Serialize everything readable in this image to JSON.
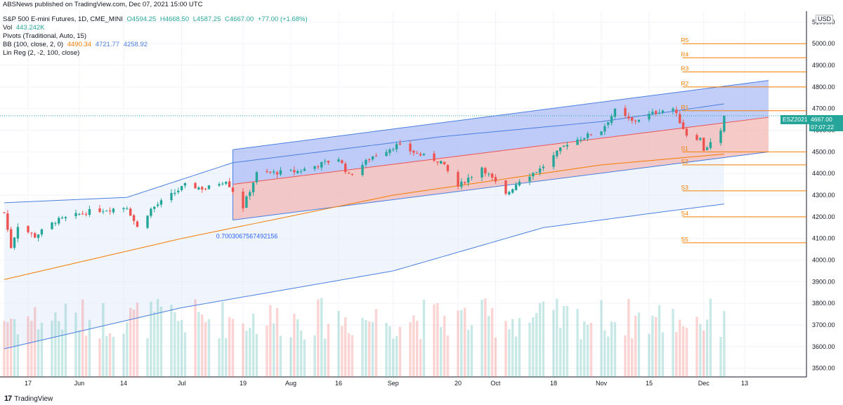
{
  "header": {
    "publisher": "ABSNews published on TradingView.com, Dec 07, 2021 15:00 UTC",
    "symbol_line": "S&P 500 E-mini Futures, 1D, CME_MINI",
    "ohlc": {
      "open": "O4594.25",
      "high": "H4668.50",
      "low": "L4587.25",
      "close": "C4667.00",
      "change": "+77.00 (+1.68%)"
    },
    "vol_label": "Vol",
    "vol_value": "443.242K",
    "pivots_label": "Pivots (Traditional, Auto, 15)",
    "bb_label": "BB (100, close, 2, 0)",
    "bb_mid": "4490.34",
    "bb_upper": "4721.77",
    "bb_lower": "4258.92",
    "linreg_label": "Lin Reg (2, -2, 100, close)"
  },
  "price_axis": {
    "currency": "USD",
    "current_symbol": "ESZ2021",
    "current_price": "4667.00",
    "countdown": "07:07:22"
  },
  "annotation": "0.7003067567492156",
  "footer": {
    "logo_text": "TradingView",
    "logo_mark": "17"
  },
  "colors": {
    "up": "#26a69a",
    "down": "#ef5350",
    "bb_band": "#4a7fe0",
    "bb_basis": "#f57c00",
    "pivot": "#f57c00",
    "linreg_upper_fill": "#a8b9f5",
    "linreg_lower_fill": "#f2b8b4"
  },
  "chart_data": {
    "type": "candlestick",
    "title": "S&P 500 E-mini Futures, 1D, CME_MINI",
    "y_range": [
      3460,
      5150
    ],
    "y_ticks": [
      3500,
      3600,
      3700,
      3800,
      3900,
      4000,
      4100,
      4200,
      4300,
      4400,
      4500,
      4600,
      4700,
      4800,
      4900,
      5000,
      5100
    ],
    "x_labels": [
      {
        "label": "17",
        "date": "2021-05-17"
      },
      {
        "label": "Jun",
        "date": "2021-06-01"
      },
      {
        "label": "14",
        "date": "2021-06-14"
      },
      {
        "label": "Jul",
        "date": "2021-07-01"
      },
      {
        "label": "19",
        "date": "2021-07-19"
      },
      {
        "label": "Aug",
        "date": "2021-08-02"
      },
      {
        "label": "16",
        "date": "2021-08-16"
      },
      {
        "label": "Sep",
        "date": "2021-09-01"
      },
      {
        "label": "20",
        "date": "2021-09-20"
      },
      {
        "label": "Oct",
        "date": "2021-10-01"
      },
      {
        "label": "18",
        "date": "2021-10-18"
      },
      {
        "label": "Nov",
        "date": "2021-11-01"
      },
      {
        "label": "15",
        "date": "2021-11-15"
      },
      {
        "label": "Dec",
        "date": "2021-12-01"
      },
      {
        "label": "13",
        "date": "2021-12-13"
      }
    ],
    "date_range": [
      "2021-05-10",
      "2021-12-20"
    ],
    "close_keypoints": [
      {
        "date": "2021-05-10",
        "close": 4220
      },
      {
        "date": "2021-05-12",
        "close": 4060
      },
      {
        "date": "2021-05-14",
        "close": 4160
      },
      {
        "date": "2021-05-19",
        "close": 4110
      },
      {
        "date": "2021-05-25",
        "close": 4180
      },
      {
        "date": "2021-06-04",
        "close": 4225
      },
      {
        "date": "2021-06-15",
        "close": 4245
      },
      {
        "date": "2021-06-18",
        "close": 4150
      },
      {
        "date": "2021-06-22",
        "close": 4235
      },
      {
        "date": "2021-07-02",
        "close": 4345
      },
      {
        "date": "2021-07-08",
        "close": 4330
      },
      {
        "date": "2021-07-14",
        "close": 4370
      },
      {
        "date": "2021-07-19",
        "close": 4245
      },
      {
        "date": "2021-07-23",
        "close": 4400
      },
      {
        "date": "2021-08-04",
        "close": 4410
      },
      {
        "date": "2021-08-16",
        "close": 4470
      },
      {
        "date": "2021-08-19",
        "close": 4390
      },
      {
        "date": "2021-08-26",
        "close": 4480
      },
      {
        "date": "2021-09-02",
        "close": 4530
      },
      {
        "date": "2021-09-10",
        "close": 4480
      },
      {
        "date": "2021-09-15",
        "close": 4455
      },
      {
        "date": "2021-09-20",
        "close": 4340
      },
      {
        "date": "2021-09-27",
        "close": 4430
      },
      {
        "date": "2021-10-04",
        "close": 4300
      },
      {
        "date": "2021-10-08",
        "close": 4370
      },
      {
        "date": "2021-10-14",
        "close": 4420
      },
      {
        "date": "2021-10-22",
        "close": 4540
      },
      {
        "date": "2021-11-01",
        "close": 4600
      },
      {
        "date": "2021-11-05",
        "close": 4690
      },
      {
        "date": "2021-11-10",
        "close": 4640
      },
      {
        "date": "2021-11-18",
        "close": 4690
      },
      {
        "date": "2021-11-22",
        "close": 4700
      },
      {
        "date": "2021-11-26",
        "close": 4580
      },
      {
        "date": "2021-11-30",
        "close": 4560
      },
      {
        "date": "2021-12-01",
        "close": 4510
      },
      {
        "date": "2021-12-03",
        "close": 4540
      },
      {
        "date": "2021-12-06",
        "close": 4590
      },
      {
        "date": "2021-12-07",
        "close": 4667
      }
    ],
    "pivots": [
      {
        "name": "R5",
        "value": 5000
      },
      {
        "name": "R4",
        "value": 4935
      },
      {
        "name": "R3",
        "value": 4870
      },
      {
        "name": "R2",
        "value": 4800
      },
      {
        "name": "R1",
        "value": 4690
      },
      {
        "name": "S1",
        "value": 4500
      },
      {
        "name": "S2",
        "value": 4440
      },
      {
        "name": "S3",
        "value": 4320
      },
      {
        "name": "S4",
        "value": 4200
      },
      {
        "name": "S5",
        "value": 4080
      }
    ],
    "bollinger": {
      "upper": [
        {
          "date": "2021-05-10",
          "v": 4265
        },
        {
          "date": "2021-06-15",
          "v": 4290
        },
        {
          "date": "2021-07-16",
          "v": 4450
        },
        {
          "date": "2021-09-15",
          "v": 4570
        },
        {
          "date": "2021-11-01",
          "v": 4640
        },
        {
          "date": "2021-12-07",
          "v": 4722
        }
      ],
      "basis": [
        {
          "date": "2021-05-10",
          "v": 3910
        },
        {
          "date": "2021-07-01",
          "v": 4100
        },
        {
          "date": "2021-09-01",
          "v": 4300
        },
        {
          "date": "2021-11-01",
          "v": 4440
        },
        {
          "date": "2021-12-07",
          "v": 4490
        }
      ],
      "lower": [
        {
          "date": "2021-05-10",
          "v": 3590
        },
        {
          "date": "2021-07-01",
          "v": 3780
        },
        {
          "date": "2021-09-01",
          "v": 3950
        },
        {
          "date": "2021-10-15",
          "v": 4150
        },
        {
          "date": "2021-11-20",
          "v": 4225
        },
        {
          "date": "2021-12-07",
          "v": 4259
        }
      ]
    },
    "linreg": {
      "start_date": "2021-07-16",
      "end_date": "2021-12-20",
      "upper": [
        4510,
        4830
      ],
      "mid": [
        4350,
        4660
      ],
      "lower": [
        4185,
        4500
      ]
    },
    "volume": {
      "max": 900000,
      "last": 443242
    }
  }
}
